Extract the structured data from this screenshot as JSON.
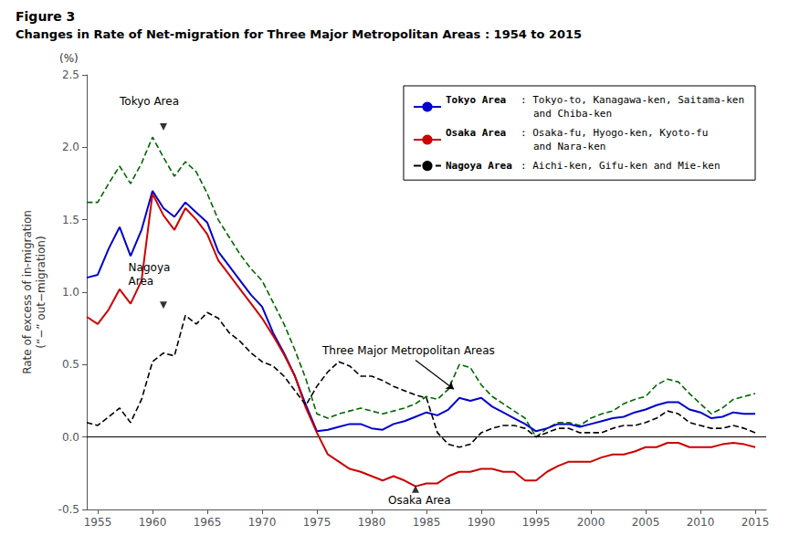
{
  "chart_data": {
    "type": "line",
    "title": "Figure 3",
    "subtitle": "Changes in Rate of Net-migration for Three Major Metropolitan Areas : 1954 to 2015",
    "ylabel": "Rate of excess of in-migration\n(“−” out−migration)",
    "y_unit": "(%)",
    "x": [
      1954,
      1955,
      1956,
      1957,
      1958,
      1959,
      1960,
      1961,
      1962,
      1963,
      1964,
      1965,
      1966,
      1967,
      1968,
      1969,
      1970,
      1971,
      1972,
      1973,
      1974,
      1975,
      1976,
      1977,
      1978,
      1979,
      1980,
      1981,
      1982,
      1983,
      1984,
      1985,
      1986,
      1987,
      1988,
      1989,
      1990,
      1991,
      1992,
      1993,
      1994,
      1995,
      1996,
      1997,
      1998,
      1999,
      2000,
      2001,
      2002,
      2003,
      2004,
      2005,
      2006,
      2007,
      2008,
      2009,
      2010,
      2011,
      2012,
      2013,
      2014,
      2015
    ],
    "xlim": [
      1954,
      2016
    ],
    "xticks": [
      1955,
      1960,
      1965,
      1970,
      1975,
      1980,
      1985,
      1990,
      1995,
      2000,
      2005,
      2010,
      2015
    ],
    "ylim": [
      -0.5,
      2.5
    ],
    "yticks": [
      -0.5,
      {
        "value": 0.0,
        "label": "0.0"
      },
      0.5,
      {
        "value": 1.0,
        "label": "1.0"
      },
      1.5,
      {
        "value": 2.0,
        "label": "2.0"
      },
      2.5
    ],
    "grid": false,
    "legend": "upper right",
    "series": [
      {
        "color": "#006600",
        "line_style": "dashed",
        "values": [
          1.62,
          1.62,
          1.75,
          1.87,
          1.75,
          1.89,
          2.07,
          1.93,
          1.8,
          1.9,
          1.83,
          1.68,
          1.5,
          1.38,
          1.26,
          1.16,
          1.08,
          0.93,
          0.78,
          0.6,
          0.4,
          0.16,
          0.13,
          0.16,
          0.18,
          0.2,
          0.18,
          0.16,
          0.18,
          0.2,
          0.23,
          0.28,
          0.26,
          0.33,
          0.5,
          0.48,
          0.36,
          0.28,
          0.23,
          0.18,
          0.13,
          0.0,
          0.06,
          0.1,
          0.1,
          0.08,
          0.13,
          0.16,
          0.18,
          0.23,
          0.26,
          0.28,
          0.36,
          0.4,
          0.38,
          0.3,
          0.23,
          0.16,
          0.2,
          0.26,
          0.28,
          0.3
        ]
      },
      {
        "name": "Tokyo Area",
        "description": ": Tokyo-to, Kanagawa-ken, Saitama-ken\nand Chiba-ken",
        "color": "#0000CC",
        "line_style": "solid",
        "values": [
          1.1,
          1.12,
          1.3,
          1.45,
          1.25,
          1.43,
          1.7,
          1.58,
          1.52,
          1.62,
          1.55,
          1.48,
          1.28,
          1.18,
          1.08,
          0.98,
          0.9,
          0.72,
          0.58,
          0.42,
          0.22,
          0.04,
          0.05,
          0.07,
          0.09,
          0.09,
          0.06,
          0.05,
          0.09,
          0.11,
          0.14,
          0.17,
          0.15,
          0.19,
          0.27,
          0.25,
          0.27,
          0.21,
          0.17,
          0.13,
          0.09,
          0.04,
          0.06,
          0.09,
          0.09,
          0.07,
          0.09,
          0.11,
          0.13,
          0.14,
          0.17,
          0.19,
          0.22,
          0.24,
          0.24,
          0.19,
          0.17,
          0.13,
          0.14,
          0.17,
          0.16,
          0.16
        ]
      },
      {
        "name": "Osaka Area",
        "description": ": Osaka-fu, Hyogo-ken, Kyoto-fu\nand Nara-ken",
        "color": "#CC0000",
        "line_style": "solid",
        "values": [
          0.83,
          0.78,
          0.88,
          1.02,
          0.92,
          1.08,
          1.68,
          1.53,
          1.43,
          1.58,
          1.5,
          1.4,
          1.22,
          1.12,
          1.02,
          0.92,
          0.82,
          0.7,
          0.57,
          0.42,
          0.2,
          0.03,
          -0.12,
          -0.17,
          -0.22,
          -0.24,
          -0.27,
          -0.3,
          -0.27,
          -0.3,
          -0.34,
          -0.32,
          -0.32,
          -0.27,
          -0.24,
          -0.24,
          -0.22,
          -0.22,
          -0.24,
          -0.24,
          -0.3,
          -0.3,
          -0.24,
          -0.2,
          -0.17,
          -0.17,
          -0.17,
          -0.14,
          -0.12,
          -0.12,
          -0.1,
          -0.07,
          -0.07,
          -0.04,
          -0.04,
          -0.07,
          -0.07,
          -0.07,
          -0.05,
          -0.04,
          -0.05,
          -0.07
        ]
      },
      {
        "name": "Nagoya Area",
        "description": ": Aichi-ken, Gifu-ken and Mie-ken",
        "color": "#000000",
        "line_style": "dashed",
        "values": [
          0.1,
          0.08,
          0.14,
          0.2,
          0.1,
          0.26,
          0.52,
          0.58,
          0.56,
          0.84,
          0.78,
          0.86,
          0.82,
          0.72,
          0.66,
          0.58,
          0.52,
          0.49,
          0.42,
          0.32,
          0.22,
          0.35,
          0.45,
          0.52,
          0.49,
          0.42,
          0.42,
          0.39,
          0.35,
          0.32,
          0.29,
          0.27,
          0.03,
          -0.05,
          -0.07,
          -0.05,
          0.03,
          0.06,
          0.08,
          0.08,
          0.06,
          0.0,
          0.03,
          0.06,
          0.06,
          0.03,
          0.03,
          0.03,
          0.06,
          0.08,
          0.08,
          0.1,
          0.13,
          0.18,
          0.16,
          0.1,
          0.08,
          0.06,
          0.06,
          0.08,
          0.06,
          0.03
        ]
      }
    ],
    "hlines": [
      0
    ],
    "annotations": [
      {
        "text": "Tokyo Area",
        "x": 1957.0,
        "y": 2.27
      },
      {
        "text": "Nagoya\nArea",
        "x": 1957.8,
        "y": 1.03
      },
      {
        "text": "Osaka Area",
        "x": 1981.5,
        "y": -0.44
      },
      {
        "text": "Three Major Metropolitan Areas",
        "x": 1975.5,
        "y": 0.55
      }
    ],
    "markers": [
      {
        "x": 1961,
        "y": 2.14,
        "marker": "triangle-down"
      },
      {
        "x": 1961,
        "y": 0.91,
        "marker": "triangle-down"
      },
      {
        "x": 1984,
        "y": -0.36,
        "marker": "triangle-up"
      }
    ],
    "arrows": [
      {
        "from": [
          1984,
          0.53
        ],
        "to": [
          1987.5,
          0.33
        ]
      }
    ]
  }
}
